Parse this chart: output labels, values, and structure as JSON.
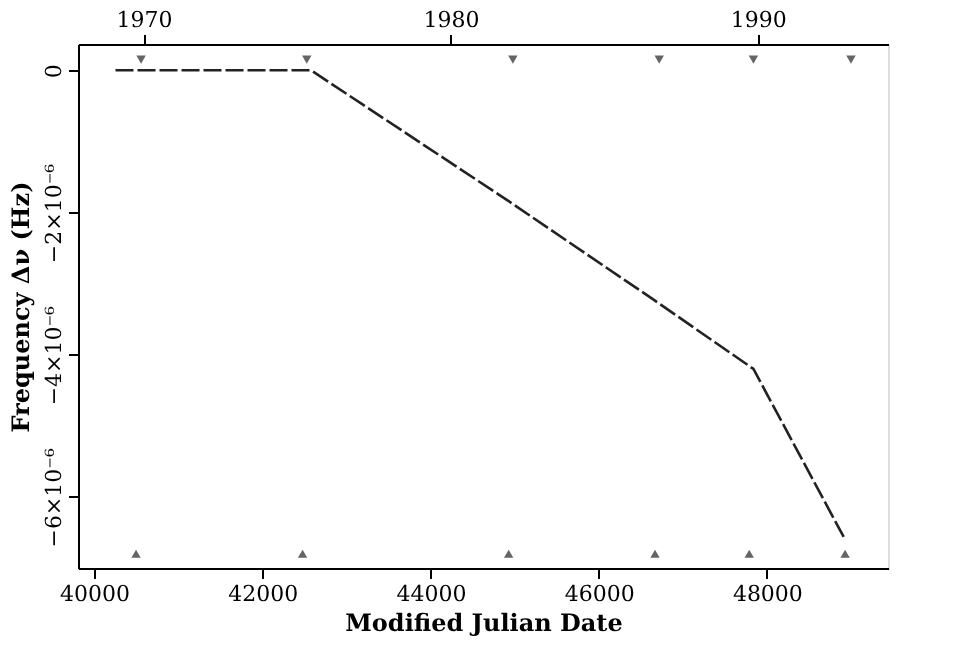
{
  "chart_data": {
    "type": "line",
    "xlabel": "Modified Julian Date",
    "ylabel": "Frequency Δν (Hz)",
    "xlim": [
      39810,
      49440
    ],
    "xticks": [
      40000,
      42000,
      44000,
      46000,
      48000
    ],
    "x2lim": [
      1967.87,
      1994.24
    ],
    "x2ticks": [
      1970,
      1980,
      1990
    ],
    "ylim": [
      -7e-06,
      3.7e-07
    ],
    "yticks": [
      0,
      {
        "value": -2e-06,
        "label": "−2×10⁻⁶"
      },
      {
        "value": -4e-06,
        "label": "−4×10⁻⁶"
      },
      {
        "value": -6e-06,
        "label": "−6×10⁻⁶"
      }
    ],
    "grid": false,
    "series": [
      {
        "color": "#222222",
        "line_style": "dashed",
        "marker": "none",
        "x": [
          40256,
          42580,
          44930,
          46670,
          47840,
          48930
        ],
        "values": [
          0,
          0,
          -1.84e-06,
          -3.24e-06,
          -4.2e-06,
          -6.6e-06
        ]
      },
      {
        "type": "scatter",
        "color": "#222222",
        "marker": "triangle",
        "x": [
          40560,
          42530,
          44980,
          46720,
          47840,
          49000
        ],
        "values": [
          1.5e-07,
          1.5e-07,
          1.5e-07,
          1.5e-07,
          1.5e-07,
          1.5e-07
        ]
      },
      {
        "type": "scatter",
        "color": "#222222",
        "marker": "triangle",
        "x": [
          40500,
          42480,
          44930,
          46670,
          47790,
          48930
        ],
        "values": [
          -6.8e-06,
          -6.8e-06,
          -6.8e-06,
          -6.8e-06,
          -6.8e-06,
          -6.8e-06
        ]
      }
    ]
  }
}
